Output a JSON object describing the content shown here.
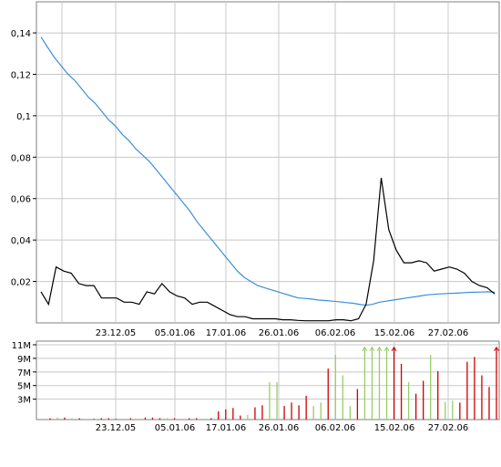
{
  "chart_data": [
    {
      "type": "line",
      "title": "",
      "xlabel": "",
      "ylabel": "",
      "ylim": [
        0,
        0.155
      ],
      "grid": true,
      "x_ticks": [
        "23.12.05",
        "05.01.06",
        "17.01.06",
        "26.01.06",
        "06.02.06",
        "15.02.06",
        "27.02.06"
      ],
      "y_ticks": [
        "0,02",
        "0,04",
        "0,06",
        "0,08",
        "0,1",
        "0,12",
        "0,14"
      ],
      "y_tick_values": [
        0.02,
        0.04,
        0.06,
        0.08,
        0.1,
        0.12,
        0.14
      ],
      "series": [
        {
          "color": "#3a8fd8",
          "values": [
            0.138,
            0.133,
            0.128,
            0.124,
            0.12,
            0.117,
            0.113,
            0.109,
            0.106,
            0.102,
            0.098,
            0.095,
            0.091,
            0.088,
            0.084,
            0.081,
            0.078,
            0.074,
            0.07,
            0.066,
            0.062,
            0.058,
            0.054,
            0.049,
            0.045,
            0.041,
            0.037,
            0.033,
            0.029,
            0.025,
            0.022,
            0.02,
            0.018,
            0.017,
            0.016,
            0.015,
            0.014,
            0.013,
            0.012,
            0.0118,
            0.0115,
            0.011,
            0.0108,
            0.0105,
            0.0102,
            0.0098,
            0.0095,
            0.009,
            0.0085,
            0.009,
            0.01,
            0.0105,
            0.011,
            0.0115,
            0.012,
            0.0125,
            0.013,
            0.0135,
            0.0138,
            0.014,
            0.0142,
            0.0143,
            0.0145,
            0.0147,
            0.0148,
            0.0149,
            0.015,
            0.0148
          ]
        },
        {
          "color": "#000000",
          "values": [
            0.015,
            0.009,
            0.027,
            0.025,
            0.024,
            0.019,
            0.018,
            0.018,
            0.012,
            0.012,
            0.012,
            0.01,
            0.01,
            0.009,
            0.015,
            0.014,
            0.019,
            0.015,
            0.013,
            0.012,
            0.009,
            0.01,
            0.01,
            0.008,
            0.006,
            0.004,
            0.003,
            0.003,
            0.002,
            0.002,
            0.002,
            0.002,
            0.0015,
            0.0015,
            0.0012,
            0.001,
            0.001,
            0.001,
            0.001,
            0.0015,
            0.0015,
            0.001,
            0.002,
            0.009,
            0.03,
            0.07,
            0.045,
            0.035,
            0.029,
            0.029,
            0.03,
            0.029,
            0.025,
            0.026,
            0.027,
            0.026,
            0.024,
            0.02,
            0.018,
            0.017,
            0.014
          ]
        }
      ]
    },
    {
      "type": "bar",
      "title": "",
      "xlabel": "",
      "ylabel": "",
      "ylim": [
        0,
        11
      ],
      "grid": true,
      "x_ticks": [
        "23.12.05",
        "05.01.06",
        "17.01.06",
        "26.01.06",
        "06.02.06",
        "15.02.06",
        "27.02.06"
      ],
      "y_ticks": [
        "3M",
        "5M",
        "7M",
        "9M",
        "11M"
      ],
      "y_tick_values": [
        3,
        5,
        7,
        9,
        11
      ],
      "bars": [
        {
          "v": 0.2,
          "c": "#cc0000"
        },
        {
          "v": 0.3,
          "c": "#99cc66"
        },
        {
          "v": 0.3,
          "c": "#cc0000"
        },
        {
          "v": 0.2,
          "c": "#99cc66"
        },
        {
          "v": 0.2,
          "c": "#cc0000"
        },
        {
          "v": 0.1,
          "c": "#99cc66"
        },
        {
          "v": 0.1,
          "c": "#cc0000"
        },
        {
          "v": 0.2,
          "c": "#cc0000"
        },
        {
          "v": 0.2,
          "c": "#cc0000"
        },
        {
          "v": 0.1,
          "c": "#cc0000"
        },
        {
          "v": 0.1,
          "c": "#99cc66"
        },
        {
          "v": 0.2,
          "c": "#cc0000"
        },
        {
          "v": 0.1,
          "c": "#99cc66"
        },
        {
          "v": 0.3,
          "c": "#cc0000"
        },
        {
          "v": 0.3,
          "c": "#cc0000"
        },
        {
          "v": 0.2,
          "c": "#cc0000"
        },
        {
          "v": 0.2,
          "c": "#99cc66"
        },
        {
          "v": 0.2,
          "c": "#cc0000"
        },
        {
          "v": 0.1,
          "c": "#99cc66"
        },
        {
          "v": 0.2,
          "c": "#cc0000"
        },
        {
          "v": 0.2,
          "c": "#cc0000"
        },
        {
          "v": 0.1,
          "c": "#99cc66"
        },
        {
          "v": 0.2,
          "c": "#cc0000"
        },
        {
          "v": 1.2,
          "c": "#cc0000"
        },
        {
          "v": 1.5,
          "c": "#cc0000"
        },
        {
          "v": 1.7,
          "c": "#cc0000"
        },
        {
          "v": 0.6,
          "c": "#cc0000"
        },
        {
          "v": 0.7,
          "c": "#99cc66"
        },
        {
          "v": 1.8,
          "c": "#cc0000"
        },
        {
          "v": 2.1,
          "c": "#cc0000"
        },
        {
          "v": 5.5,
          "c": "#99cc66"
        },
        {
          "v": 5.5,
          "c": "#99cc66"
        },
        {
          "v": 2.0,
          "c": "#cc0000"
        },
        {
          "v": 2.5,
          "c": "#cc0000"
        },
        {
          "v": 2.1,
          "c": "#cc0000"
        },
        {
          "v": 3.5,
          "c": "#cc0000"
        },
        {
          "v": 2.0,
          "c": "#99cc66"
        },
        {
          "v": 2.5,
          "c": "#99cc66"
        },
        {
          "v": 7.5,
          "c": "#cc0000"
        },
        {
          "v": 9.5,
          "c": "#99cc66"
        },
        {
          "v": 6.5,
          "c": "#99cc66"
        },
        {
          "v": 2.0,
          "c": "#99cc66"
        },
        {
          "v": 4.5,
          "c": "#cc0000"
        },
        {
          "v": 10.5,
          "c": "#99cc66"
        },
        {
          "v": 10.5,
          "c": "#99cc66"
        },
        {
          "v": 10.5,
          "c": "#99cc66"
        },
        {
          "v": 10.5,
          "c": "#99cc66"
        },
        {
          "v": 10.5,
          "c": "#cc0000"
        },
        {
          "v": 8.2,
          "c": "#cc0000"
        },
        {
          "v": 5.5,
          "c": "#99cc66"
        },
        {
          "v": 3.8,
          "c": "#cc0000"
        },
        {
          "v": 5.7,
          "c": "#cc0000"
        },
        {
          "v": 9.5,
          "c": "#99cc66"
        },
        {
          "v": 7.1,
          "c": "#cc0000"
        },
        {
          "v": 2.6,
          "c": "#99cc66"
        },
        {
          "v": 2.8,
          "c": "#99cc66"
        },
        {
          "v": 2.5,
          "c": "#cc0000"
        },
        {
          "v": 8.5,
          "c": "#cc0000"
        },
        {
          "v": 9.2,
          "c": "#cc0000"
        },
        {
          "v": 6.5,
          "c": "#cc0000"
        },
        {
          "v": 4.8,
          "c": "#cc0000"
        },
        {
          "v": 10.5,
          "c": "#cc0000"
        }
      ]
    }
  ]
}
